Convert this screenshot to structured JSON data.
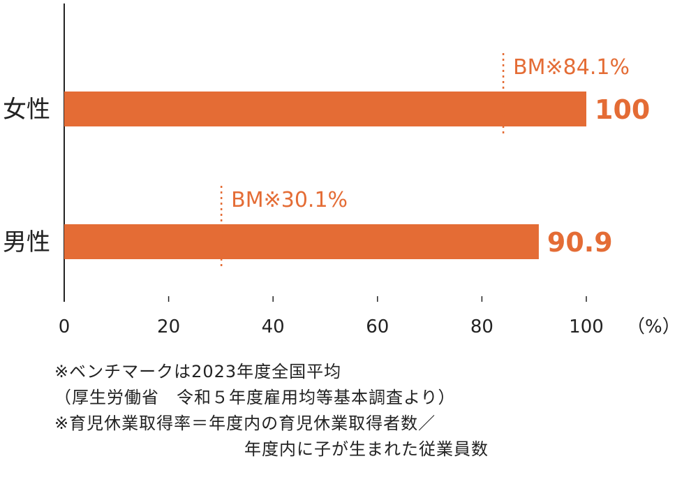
{
  "chart_data": {
    "type": "bar",
    "orientation": "horizontal",
    "categories": [
      "女性",
      "男性"
    ],
    "values": [
      100,
      90.9
    ],
    "value_labels": [
      "100",
      "90.9"
    ],
    "benchmarks": [
      84.1,
      30.1
    ],
    "benchmark_labels": [
      "BM※84.1%",
      "BM※30.1%"
    ],
    "xlim": [
      0,
      100
    ],
    "x_ticks": [
      0,
      20,
      40,
      60,
      80,
      100
    ],
    "x_tick_labels": [
      "0",
      "20",
      "40",
      "60",
      "80",
      "100"
    ],
    "unit_label": "（%）",
    "grid": false,
    "colors": {
      "bar": "#e46c35",
      "axis": "#222222",
      "text": "#222222"
    }
  },
  "notes": [
    "※ベンチマークは2023年度全国平均",
    "（厚生労働省　令和５年度雇用均等基本調査より）",
    "※育児休業取得率＝年度内の育児休業取得者数／",
    "年度内に子が生まれた従業員数"
  ]
}
